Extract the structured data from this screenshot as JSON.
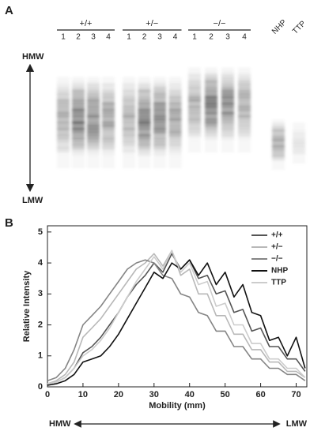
{
  "panel_a": {
    "label": "A",
    "groups": [
      {
        "name": "+/+",
        "lanes": [
          "1",
          "2",
          "3",
          "4"
        ]
      },
      {
        "name": "+/−",
        "lanes": [
          "1",
          "2",
          "3",
          "4"
        ]
      },
      {
        "name": "−/−",
        "lanes": [
          "1",
          "2",
          "3",
          "4"
        ]
      }
    ],
    "extra_lanes": [
      "NHP",
      "TTP"
    ],
    "top_label": "HMW",
    "bottom_label": "LMW"
  },
  "chart_data": {
    "type": "line",
    "panel_label": "B",
    "x_label": "Mobility (mm)",
    "y_label": "Relative Intensity",
    "mobility_direction": {
      "left": "HMW",
      "right": "LMW"
    },
    "x": [
      0,
      2.5,
      5,
      7.5,
      10,
      12.5,
      15,
      17.5,
      20,
      22.5,
      25,
      27.5,
      30,
      32.5,
      35,
      37.5,
      40,
      42.5,
      45,
      47.5,
      50,
      52.5,
      55,
      57.5,
      60,
      62.5,
      65,
      67.5,
      70,
      72.5
    ],
    "series": [
      {
        "name": "+/+",
        "color": "#555555",
        "values": [
          0.1,
          0.15,
          0.3,
          0.6,
          1.1,
          1.3,
          1.6,
          2.0,
          2.4,
          2.9,
          3.3,
          3.6,
          4.0,
          3.7,
          4.3,
          3.8,
          4.1,
          3.5,
          3.6,
          3.0,
          3.1,
          2.4,
          2.5,
          1.8,
          1.9,
          1.3,
          1.3,
          0.9,
          0.9,
          0.5
        ]
      },
      {
        "name": "+/−",
        "color": "#b8b8b8",
        "values": [
          0.1,
          0.2,
          0.4,
          0.8,
          1.6,
          1.9,
          2.2,
          2.6,
          3.0,
          3.4,
          3.8,
          4.0,
          4.3,
          3.9,
          4.4,
          3.6,
          3.8,
          3.0,
          3.0,
          2.3,
          2.3,
          1.7,
          1.7,
          1.2,
          1.2,
          0.8,
          0.8,
          0.5,
          0.5,
          0.3
        ]
      },
      {
        "name": "−/−",
        "color": "#858585",
        "values": [
          0.2,
          0.3,
          0.6,
          1.2,
          2.0,
          2.3,
          2.6,
          3.0,
          3.4,
          3.8,
          4.0,
          4.1,
          4.0,
          3.6,
          3.5,
          3.0,
          2.9,
          2.4,
          2.3,
          1.8,
          1.8,
          1.3,
          1.3,
          0.9,
          0.9,
          0.6,
          0.6,
          0.4,
          0.4,
          0.2
        ]
      },
      {
        "name": "NHP",
        "color": "#111111",
        "values": [
          0.05,
          0.1,
          0.2,
          0.4,
          0.8,
          0.9,
          1.0,
          1.3,
          1.7,
          2.2,
          2.7,
          3.2,
          3.7,
          3.5,
          4.0,
          3.8,
          4.1,
          3.6,
          4.0,
          3.3,
          3.7,
          2.9,
          3.3,
          2.4,
          2.3,
          1.5,
          1.6,
          1.0,
          1.6,
          0.6
        ]
      },
      {
        "name": "TTP",
        "color": "#cccccc",
        "values": [
          0.1,
          0.15,
          0.3,
          0.6,
          1.0,
          1.2,
          1.5,
          1.9,
          2.4,
          2.9,
          3.4,
          3.8,
          4.2,
          3.8,
          4.4,
          3.7,
          4.0,
          3.3,
          3.4,
          2.6,
          2.7,
          2.0,
          2.0,
          1.4,
          1.4,
          0.9,
          0.9,
          0.6,
          0.6,
          0.3
        ]
      }
    ],
    "xlim": [
      0,
      73
    ],
    "ylim": [
      0,
      5.2
    ],
    "xticks": [
      0,
      10,
      20,
      30,
      40,
      50,
      60,
      70
    ],
    "yticks": [
      0,
      1,
      2,
      3,
      4,
      5
    ],
    "legend": "upper right"
  }
}
